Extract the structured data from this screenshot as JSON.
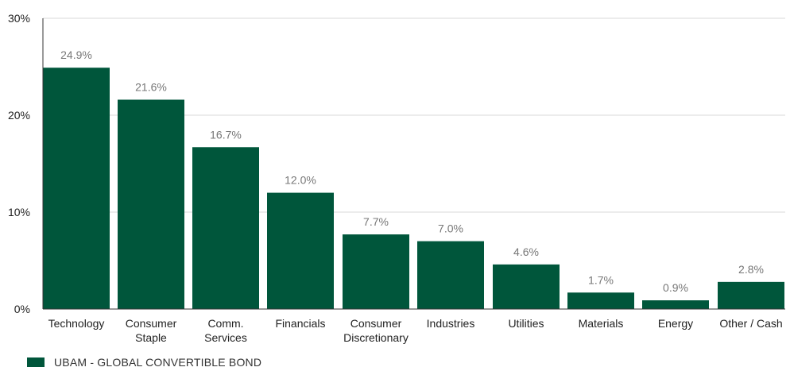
{
  "colors": {
    "bar": "#00563b",
    "grid": "#d9d9d9",
    "axis": "#333333",
    "tick_text": "#222222",
    "value_text": "#777777"
  },
  "chart_data": {
    "type": "bar",
    "categories": [
      "Technology",
      "Consumer Staple",
      "Comm. Services",
      "Financials",
      "Consumer Discretionary",
      "Industries",
      "Utilities",
      "Materials",
      "Energy",
      "Other / Cash"
    ],
    "series": [
      {
        "name": "UBAM - GLOBAL CONVERTIBLE BOND",
        "values": [
          24.9,
          21.6,
          16.7,
          12.0,
          7.7,
          7.0,
          4.6,
          1.7,
          0.9,
          2.8
        ]
      }
    ],
    "data_labels": [
      "24.9%",
      "21.6%",
      "16.7%",
      "12.0%",
      "7.7%",
      "7.0%",
      "4.6%",
      "1.7%",
      "0.9%",
      "2.8%"
    ],
    "yticks": [
      0,
      10,
      20,
      30
    ],
    "ytick_labels": [
      "0%",
      "10%",
      "20%",
      "30%"
    ],
    "ylim": [
      0,
      30
    ],
    "grid": true,
    "legend_position": "bottom-left"
  }
}
